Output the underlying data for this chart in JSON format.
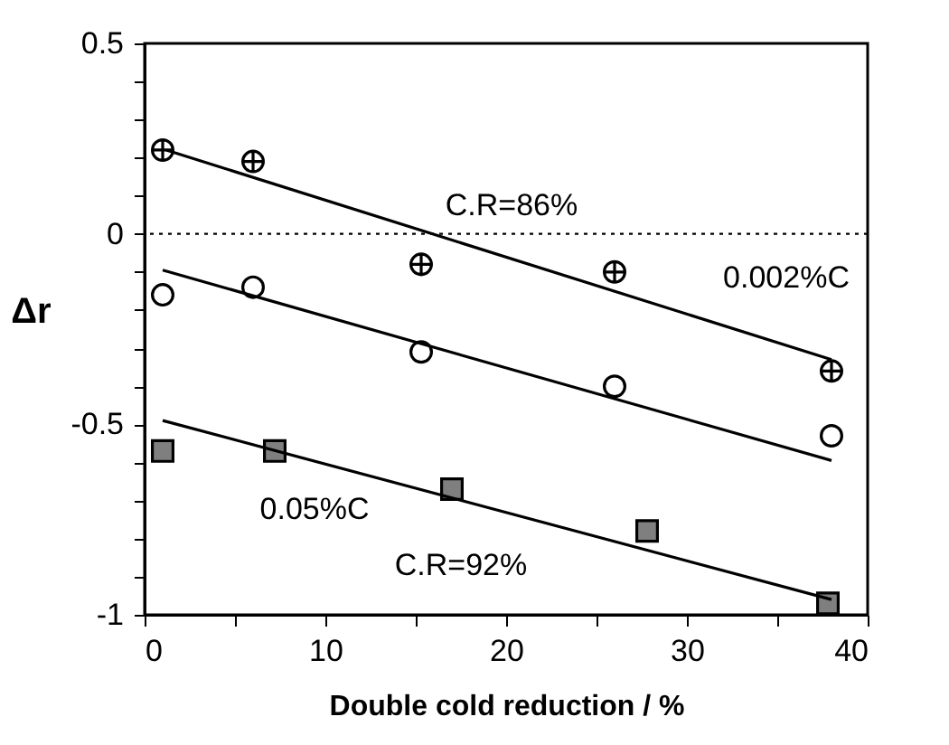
{
  "chart_data": {
    "type": "scatter",
    "xlabel": "Double cold reduction / %",
    "ylabel": "Δr",
    "xlim": [
      0,
      40
    ],
    "ylim": [
      -1,
      0.5
    ],
    "xticks": [
      0,
      {
        "value": 5,
        "label": null
      },
      10,
      {
        "value": 15,
        "label": null
      },
      20,
      {
        "value": 25,
        "label": null
      },
      30,
      {
        "value": 35,
        "label": null
      },
      40
    ],
    "yticks": [
      -1,
      {
        "value": -0.9,
        "label": null
      },
      {
        "value": -0.8,
        "label": null
      },
      {
        "value": -0.7,
        "label": null
      },
      {
        "value": -0.6,
        "label": null
      },
      -0.5,
      {
        "value": -0.4,
        "label": null
      },
      {
        "value": -0.3,
        "label": null
      },
      {
        "value": -0.2,
        "label": null
      },
      {
        "value": -0.1,
        "label": null
      },
      0,
      {
        "value": 0.1,
        "label": null
      },
      {
        "value": 0.2,
        "label": null
      },
      {
        "value": 0.3,
        "label": null
      },
      {
        "value": 0.4,
        "label": null
      },
      0.5
    ],
    "series": [
      {
        "marker": "cross",
        "color": "#000000",
        "x": [
          1,
          6,
          15.3,
          26,
          38
        ],
        "values": [
          0.22,
          0.19,
          -0.08,
          -0.1,
          -0.36
        ]
      },
      {
        "marker": "circle",
        "color": "#000000",
        "x": [
          1,
          6,
          15.3,
          26,
          38
        ],
        "values": [
          -0.16,
          -0.14,
          -0.31,
          -0.4,
          -0.53
        ]
      },
      {
        "marker": "square",
        "color": "#000000",
        "x": [
          1,
          7.2,
          17,
          27.8,
          37.8
        ],
        "values": [
          -0.57,
          -0.57,
          -0.67,
          -0.78,
          -0.97
        ]
      },
      {
        "type": "line",
        "color": "#000000",
        "x": [
          1.2,
          38
        ],
        "values": [
          0.22,
          -0.33
        ]
      },
      {
        "type": "line",
        "color": "#000000",
        "x": [
          1,
          38
        ],
        "values": [
          -0.095,
          -0.595
        ]
      },
      {
        "type": "line",
        "color": "#000000",
        "x": [
          1,
          38
        ],
        "values": [
          -0.49,
          -0.96
        ]
      }
    ],
    "ref_lines": [
      {
        "axis": "y",
        "value": 0,
        "label": null,
        "line_style": "dotted",
        "color": "#000000"
      }
    ],
    "annotations": [
      "C.R=86%",
      "0.002%C",
      "0.05%C",
      "C.R=92%"
    ]
  }
}
